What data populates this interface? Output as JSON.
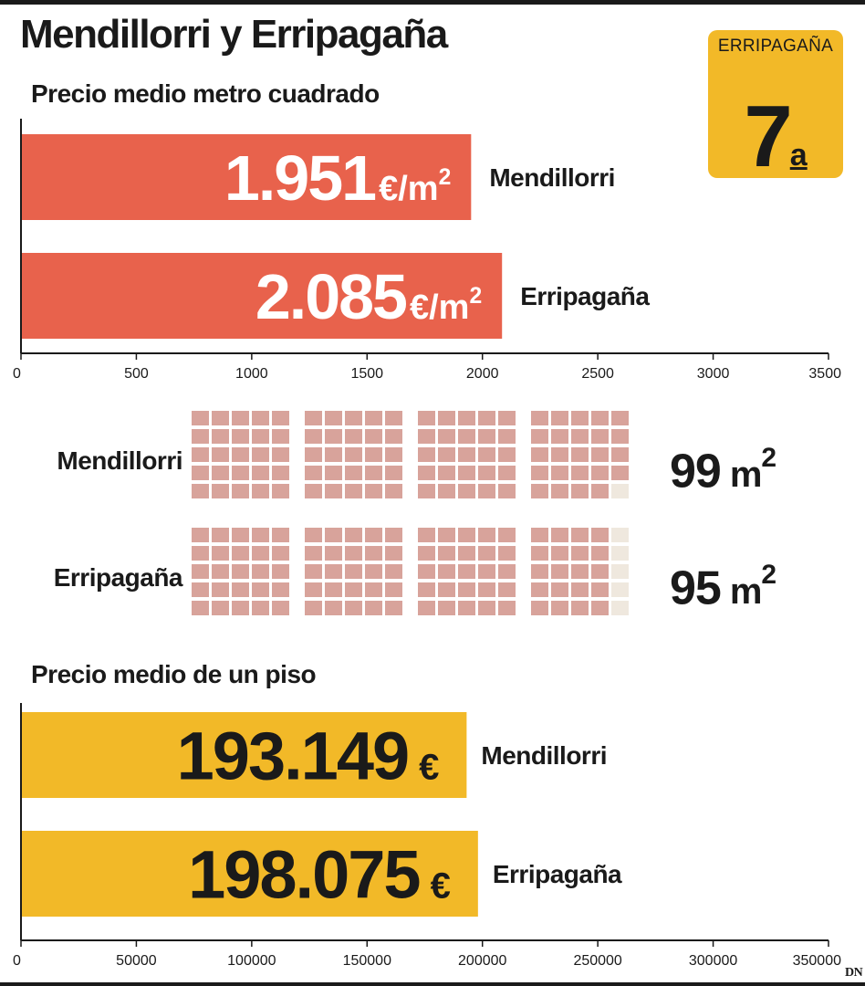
{
  "title": "Mendillorri y Erripagaña",
  "rank_badge": {
    "label": "ERRIPAGAÑA",
    "number": "7",
    "suffix": "a",
    "color": "#f2b928"
  },
  "colors": {
    "price_m2_bar": "#e8624c",
    "flat_price_bar": "#f2b928",
    "square_filled": "#d8a39b",
    "square_empty": "#efe8de"
  },
  "area": {
    "grid_max": 100,
    "rows": [
      {
        "name": "Mendillorri",
        "value": 99,
        "value_text": "99",
        "unit": "m",
        "unit_sup": "2"
      },
      {
        "name": "Erripagaña",
        "value": 95,
        "value_text": "95",
        "unit": "m",
        "unit_sup": "2"
      }
    ]
  },
  "logo": "DN",
  "chart_data": [
    {
      "type": "bar",
      "orientation": "horizontal",
      "title": "Precio medio metro cuadrado",
      "categories": [
        "Mendillorri",
        "Erripagaña"
      ],
      "values": [
        1951,
        2085
      ],
      "value_labels": [
        "1.951",
        "2.085"
      ],
      "unit": "€/m",
      "unit_sup": "2",
      "xlim": [
        0,
        3500
      ],
      "ticks": [
        0,
        500,
        1000,
        1500,
        2000,
        2500,
        3000,
        3500
      ]
    },
    {
      "type": "bar",
      "orientation": "horizontal",
      "title": "Precio medio de un piso",
      "categories": [
        "Mendillorri",
        "Erripagaña"
      ],
      "values": [
        193149,
        198075
      ],
      "value_labels": [
        "193.149",
        "198.075"
      ],
      "unit": "€",
      "xlim": [
        0,
        350000
      ],
      "ticks": [
        0,
        50000,
        100000,
        150000,
        200000,
        250000,
        300000,
        350000
      ]
    }
  ]
}
